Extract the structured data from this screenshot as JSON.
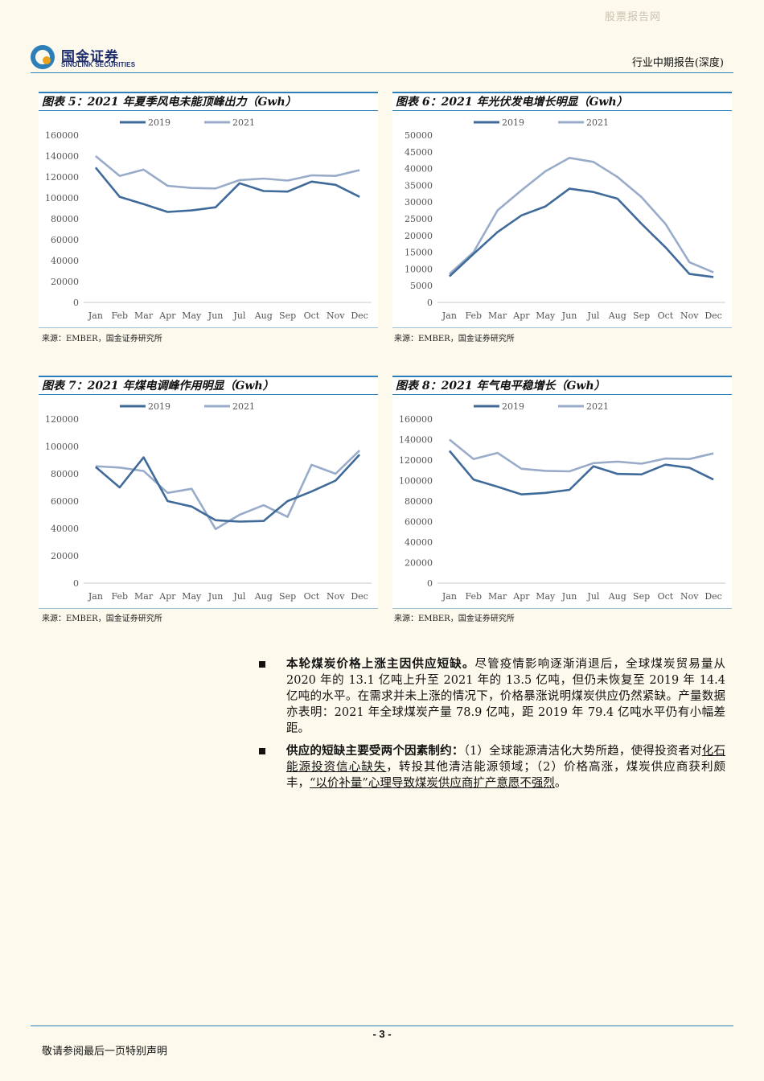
{
  "watermark": "股票报告网",
  "logo": {
    "cn": "国金证券",
    "en": "SINOLINK SECURITIES"
  },
  "header": {
    "report_type": "行业中期报告(深度)"
  },
  "colors": {
    "series_2019": "#3f6a9a",
    "series_2021": "#98acc9",
    "rule": "#2c7fb8"
  },
  "figures": [
    {
      "title": "图表 5：2021 年夏季风电未能顶峰出力（Gwh）",
      "source": "来源：EMBER，国金证券研究所",
      "chart_data": {
        "type": "line",
        "categories": [
          "Jan",
          "Feb",
          "Mar",
          "Apr",
          "May",
          "Jun",
          "Jul",
          "Aug",
          "Sep",
          "Oct",
          "Nov",
          "Dec"
        ],
        "yticks": [
          "0",
          "20000",
          "40000",
          "60000",
          "80000",
          "100000",
          "120000",
          "140000",
          "160000"
        ],
        "ylim": [
          0,
          160000
        ],
        "legend_position": "top",
        "series": [
          {
            "name": "2019",
            "values": [
              129000,
              101000,
              94000,
              86500,
              88000,
              91000,
              114000,
              106500,
              106000,
              115500,
              112500,
              101000
            ]
          },
          {
            "name": "2021",
            "values": [
              140000,
              121000,
              127000,
              111500,
              109500,
              109000,
              117000,
              118500,
              116500,
              121500,
              121000,
              126500
            ]
          }
        ]
      }
    },
    {
      "title": "图表 6：2021 年光伏发电增长明显（Gwh）",
      "source": "来源：EMBER，国金证券研究所",
      "chart_data": {
        "type": "line",
        "categories": [
          "Jan",
          "Feb",
          "Mar",
          "Apr",
          "May",
          "Jun",
          "Jul",
          "Aug",
          "Sep",
          "Oct",
          "Nov",
          "Dec"
        ],
        "yticks": [
          "0",
          "5000",
          "10000",
          "15000",
          "20000",
          "25000",
          "30000",
          "35000",
          "40000",
          "45000",
          "50000"
        ],
        "ylim": [
          0,
          50000
        ],
        "legend_position": "top",
        "series": [
          {
            "name": "2019",
            "values": [
              7800,
              14500,
              21000,
              26000,
              28700,
              34000,
              33000,
              31000,
              23500,
              16500,
              8500,
              7600
            ]
          },
          {
            "name": "2021",
            "values": [
              8500,
              15000,
              27500,
              33500,
              39200,
              43200,
              42000,
              37500,
              31500,
              23500,
              12000,
              9000
            ]
          }
        ]
      }
    },
    {
      "title": "图表 7：2021 年煤电调峰作用明显（Gwh）",
      "source": "来源：EMBER，国金证券研究所",
      "chart_data": {
        "type": "line",
        "categories": [
          "Jan",
          "Feb",
          "Mar",
          "Apr",
          "May",
          "Jun",
          "Jul",
          "Aug",
          "Sep",
          "Oct",
          "Nov",
          "Dec"
        ],
        "yticks": [
          "0",
          "20000",
          "40000",
          "60000",
          "80000",
          "100000",
          "120000"
        ],
        "ylim": [
          0,
          120000
        ],
        "legend_position": "top",
        "series": [
          {
            "name": "2019",
            "values": [
              85000,
              70000,
              92000,
              60000,
              56000,
              46000,
              45000,
              45500,
              60000,
              67000,
              75000,
              94000
            ]
          },
          {
            "name": "2021",
            "values": [
              85500,
              84500,
              82000,
              66000,
              69000,
              39500,
              50000,
              57000,
              48500,
              86500,
              80000,
              97000
            ]
          }
        ]
      }
    },
    {
      "title": "图表 8：2021 年气电平稳增长（Gwh）",
      "source": "来源：EMBER，国金证券研究所",
      "chart_data": {
        "type": "line",
        "categories": [
          "Jan",
          "Feb",
          "Mar",
          "Apr",
          "May",
          "Jun",
          "Jul",
          "Aug",
          "Sep",
          "Oct",
          "Nov",
          "Dec"
        ],
        "yticks": [
          "0",
          "20000",
          "40000",
          "60000",
          "80000",
          "100000",
          "120000",
          "140000",
          "160000"
        ],
        "ylim": [
          0,
          160000
        ],
        "legend_position": "top",
        "series": [
          {
            "name": "2019",
            "values": [
              129000,
              101000,
              94000,
              86500,
              88000,
              91000,
              114000,
              106500,
              106000,
              115500,
              112500,
              101000
            ]
          },
          {
            "name": "2021",
            "values": [
              140000,
              121000,
              127000,
              111500,
              109500,
              109000,
              117000,
              118500,
              116500,
              121500,
              121000,
              126500
            ]
          }
        ]
      }
    }
  ],
  "body": {
    "bullet1": {
      "lead": "本轮煤炭价格上涨主因供应短缺。",
      "text": "尽管疫情影响逐渐消退后，全球煤炭贸易量从 2020 年的 13.1 亿吨上升至 2021 年的 13.5 亿吨，但仍未恢复至 2019 年 14.4 亿吨的水平。在需求并未上涨的情况下，价格暴涨说明煤炭供应仍然紧缺。产量数据亦表明：2021 年全球煤炭产量 78.9 亿吨，距 2019 年 79.4 亿吨水平仍有小幅差距。"
    },
    "bullet2": {
      "lead": "供应的短缺主要受两个因素制约：",
      "part1": "（1）全球能源清洁化大势所趋，使得投资者对",
      "underline1": "化石能源投资信心缺失",
      "part2": "，转投其他清洁能源领域；（2）价格高涨，煤炭供应商获利颇丰，",
      "underline2": "“以价补量”心理导致煤炭供应商扩产意愿不强烈",
      "part3": "。"
    }
  },
  "footer": {
    "page": "- 3 -",
    "disclaimer": "敬请参阅最后一页特别声明"
  }
}
